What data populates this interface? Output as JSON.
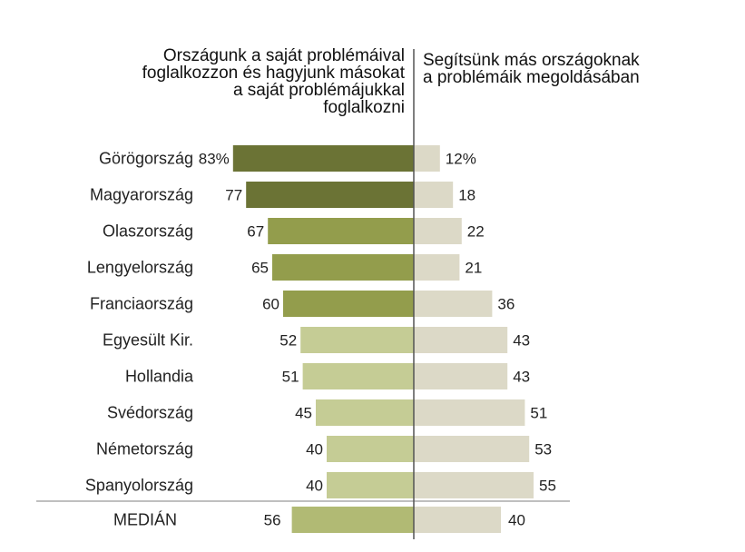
{
  "headers": {
    "left": [
      "Országunk a saját problémáival",
      "foglalkozzon és hagyjunk másokat",
      "a saját problémájukkal",
      "foglalkozni"
    ],
    "right": [
      "Segítsünk más országoknak",
      "a problémáik megoldásában"
    ]
  },
  "colors": {
    "left_dark": "#6b7335",
    "left_mid": "#939d4c",
    "left_light": "#c5cc95",
    "left_median": "#b1ba74",
    "right": "#dcd9c7",
    "axis": "#555555",
    "median_rule": "#bfbfbf",
    "text": "#222222"
  },
  "chart_data": {
    "type": "bar",
    "orientation": "horizontal-diverging",
    "categories": [
      "Görögország",
      "Magyarország",
      "Olaszország",
      "Lengyelország",
      "Franciaország",
      "Egyesült Kir.",
      "Hollandia",
      "Svédország",
      "Németország",
      "Spanyolország"
    ],
    "series": [
      {
        "values": [
          83,
          77,
          67,
          65,
          60,
          52,
          51,
          45,
          40,
          40
        ],
        "labels": [
          "83%",
          "77",
          "67",
          "65",
          "60",
          "52",
          "51",
          "45",
          "40",
          "40"
        ],
        "side": "left"
      },
      {
        "values": [
          12,
          18,
          22,
          21,
          36,
          43,
          43,
          51,
          53,
          55
        ],
        "labels": [
          "12%",
          "18",
          "22",
          "21",
          "36",
          "43",
          "43",
          "51",
          "53",
          "55"
        ],
        "side": "right"
      }
    ],
    "median": {
      "label": "MEDIÁN",
      "left": 56,
      "right": 40,
      "left_label": "56",
      "right_label": "40"
    },
    "grid": false
  }
}
